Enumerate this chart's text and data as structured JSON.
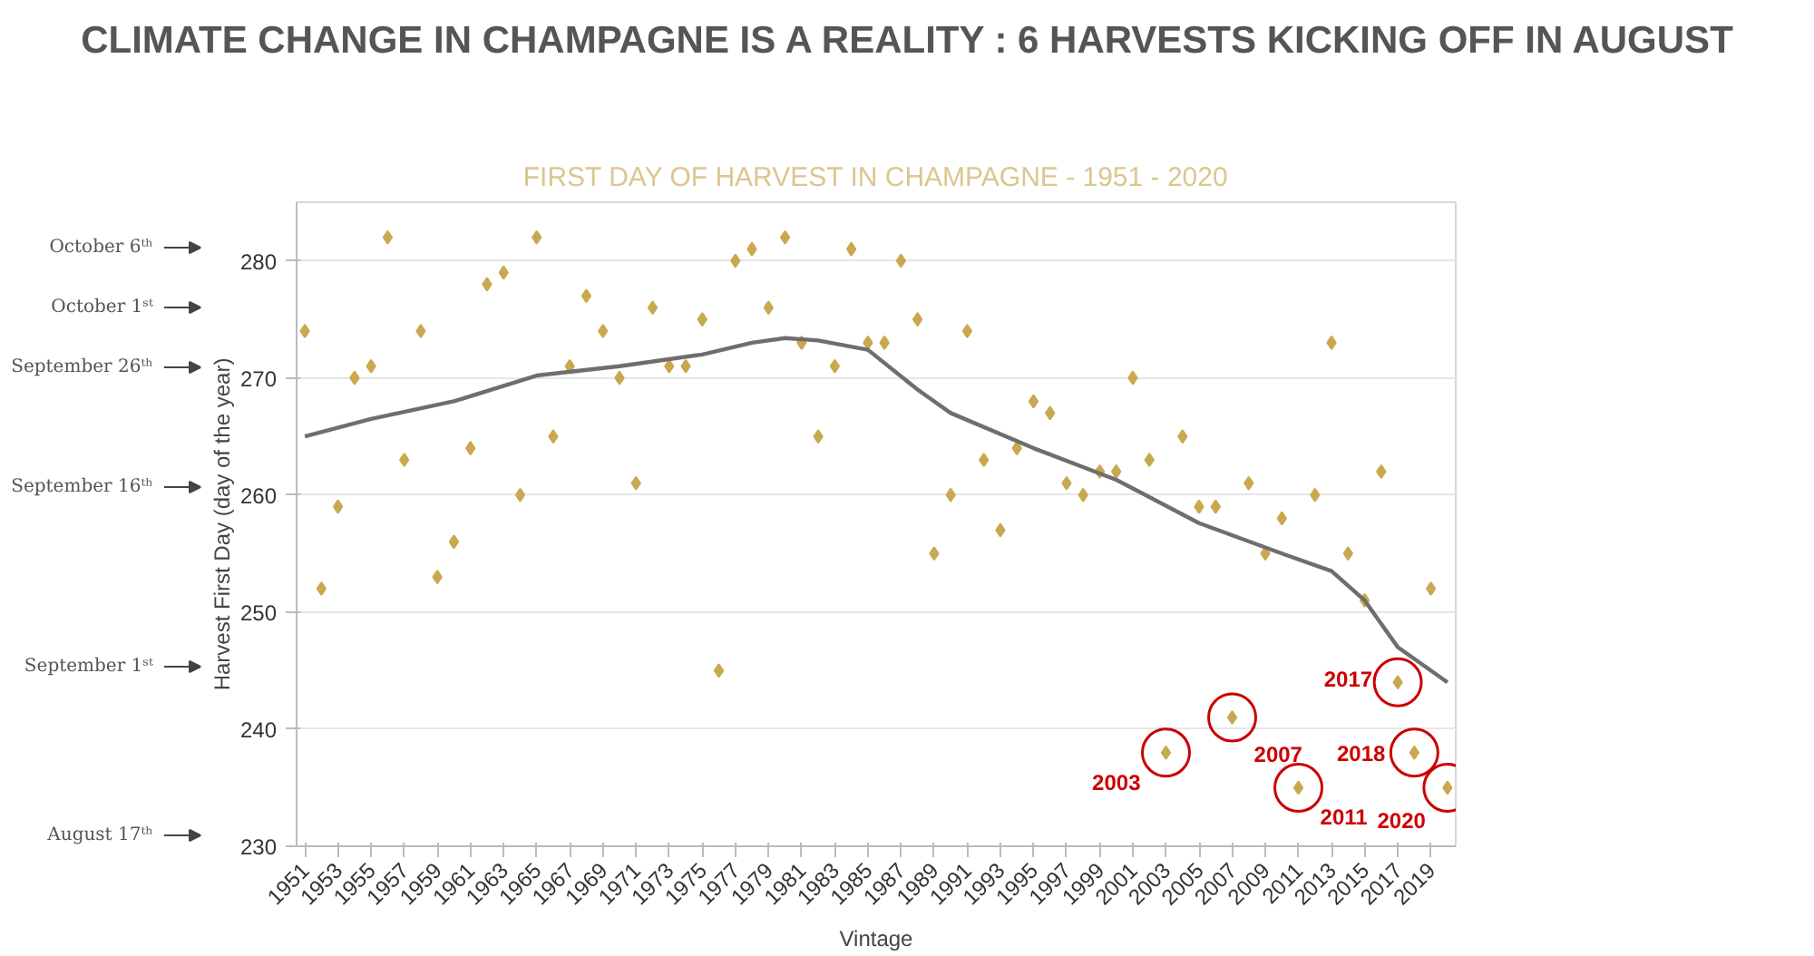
{
  "chart_data": {
    "type": "scatter",
    "title": "CLIMATE CHANGE IN CHAMPAGNE IS A REALITY : 6 HARVESTS KICKING OFF IN AUGUST",
    "subtitle": "FIRST DAY OF HARVEST IN CHAMPAGNE - 1951 - 2020",
    "xlabel": "Vintage",
    "ylabel": "Harvest First Day (day of the year)",
    "x": [
      1951,
      1952,
      1953,
      1954,
      1955,
      1956,
      1957,
      1958,
      1959,
      1960,
      1961,
      1962,
      1963,
      1964,
      1965,
      1966,
      1967,
      1968,
      1969,
      1970,
      1971,
      1972,
      1973,
      1974,
      1975,
      1976,
      1977,
      1978,
      1979,
      1980,
      1981,
      1982,
      1983,
      1984,
      1985,
      1986,
      1987,
      1988,
      1989,
      1990,
      1991,
      1992,
      1993,
      1994,
      1995,
      1996,
      1997,
      1998,
      1999,
      2000,
      2001,
      2002,
      2003,
      2004,
      2005,
      2006,
      2007,
      2008,
      2009,
      2010,
      2011,
      2012,
      2013,
      2014,
      2015,
      2016,
      2017,
      2018,
      2019,
      2020
    ],
    "series": [
      {
        "color": "#c9a94f",
        "marker": "diamond",
        "values": [
          274,
          252,
          259,
          270,
          271,
          282,
          263,
          274,
          253,
          256,
          264,
          278,
          279,
          260,
          282,
          265,
          271,
          277,
          274,
          270,
          261,
          276,
          271,
          271,
          275,
          245,
          280,
          281,
          276,
          282,
          273,
          265,
          271,
          281,
          273,
          273,
          280,
          275,
          255,
          260,
          274,
          263,
          257,
          264,
          268,
          267,
          261,
          260,
          262,
          262,
          270,
          263,
          238,
          265,
          259,
          259,
          241,
          261,
          255,
          258,
          235,
          260,
          273,
          255,
          251,
          262,
          244,
          238,
          252,
          235
        ]
      },
      {
        "type": "line",
        "marker": "none",
        "color": "#6e6e6e",
        "x": [
          1951,
          1955,
          1960,
          1965,
          1970,
          1975,
          1978,
          1980,
          1982,
          1985,
          1988,
          1990,
          1995,
          2000,
          2005,
          2010,
          2013,
          2015,
          2017,
          2020
        ],
        "values": [
          265,
          266.5,
          268,
          270.2,
          271,
          272,
          273,
          273.4,
          273.2,
          272.4,
          269,
          267,
          264,
          261.3,
          257.6,
          255,
          253.5,
          251,
          247,
          244
        ]
      }
    ],
    "xlim": [
      1950.5,
      2020.5
    ],
    "xticks": [
      1951,
      1953,
      1955,
      1957,
      1959,
      1961,
      1963,
      1965,
      1967,
      1969,
      1971,
      1973,
      1975,
      1977,
      1979,
      1981,
      1983,
      1985,
      1987,
      1989,
      1991,
      1993,
      1995,
      1997,
      1999,
      2001,
      2003,
      2005,
      2007,
      2009,
      2011,
      2013,
      2015,
      2017,
      2019
    ],
    "ylim": [
      230,
      285
    ],
    "yticks": [
      230,
      240,
      250,
      260,
      270,
      280
    ],
    "grid": "y",
    "line_style": "solid",
    "annotations": [
      "October 6ᵗʰ",
      "October 1ˢᵗ",
      "September 26ᵗʰ",
      "September 16ᵗʰ",
      "September 1ˢᵗ",
      "August 17ᵗʰ",
      {
        "text": "2003",
        "x": 2003,
        "y": 238
      },
      {
        "text": "2007",
        "x": 2007,
        "y": 241
      },
      {
        "text": "2011",
        "x": 2011,
        "y": 235
      },
      {
        "text": "2017",
        "x": 2017,
        "y": 244
      },
      {
        "text": "2018",
        "x": 2018,
        "y": 238
      },
      {
        "text": "2020",
        "x": 2020,
        "y": 235
      }
    ]
  }
}
